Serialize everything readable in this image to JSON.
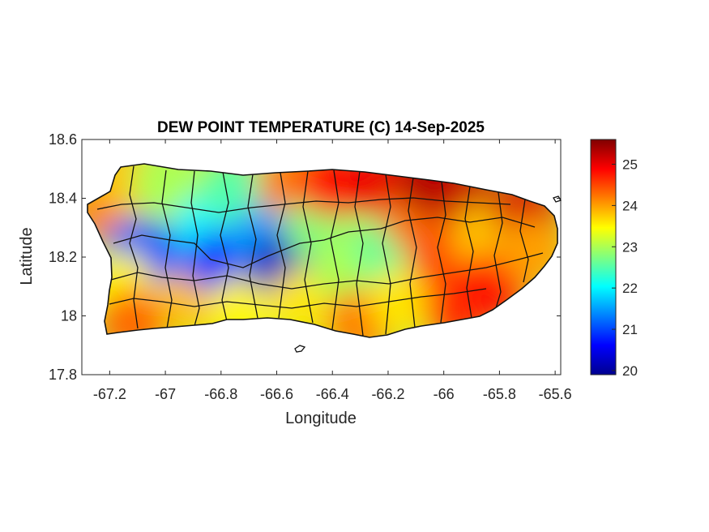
{
  "map": {
    "title": "DEW POINT TEMPERATURE (C) 14-Sep-2025",
    "xlabel": "Longitude",
    "ylabel": "Latitude",
    "xlim": [
      -67.3,
      -65.58
    ],
    "ylim": [
      17.8,
      18.6
    ],
    "xticks": [
      -67.2,
      -67,
      -66.8,
      -66.6,
      -66.4,
      -66.2,
      -66,
      -65.8,
      -65.6
    ],
    "xtick_labels": [
      "-67.2",
      "-67",
      "-66.8",
      "-66.6",
      "-66.4",
      "-66.2",
      "-66",
      "-65.8",
      "-65.6"
    ],
    "yticks": [
      17.8,
      18,
      18.2,
      18.4,
      18.6
    ],
    "ytick_labels": [
      "17.8",
      "18",
      "18.2",
      "18.4",
      "18.6"
    ],
    "colormap": "jet",
    "colorbar": {
      "range": [
        19.9,
        25.6
      ],
      "ticks": [
        20,
        21,
        22,
        23,
        24,
        25
      ],
      "tick_labels": [
        "20",
        "21",
        "22",
        "23",
        "24",
        "25"
      ]
    },
    "region": "Puerto Rico",
    "dew_point_field": [
      {
        "lon": -67.22,
        "lat": 18.37,
        "value": 24.2
      },
      {
        "lon": -67.15,
        "lat": 18.47,
        "value": 23.8
      },
      {
        "lon": -67.1,
        "lat": 18.22,
        "value": 21.2
      },
      {
        "lon": -67.15,
        "lat": 18.1,
        "value": 23.5
      },
      {
        "lon": -67.12,
        "lat": 17.98,
        "value": 24.3
      },
      {
        "lon": -67.0,
        "lat": 18.45,
        "value": 23.0
      },
      {
        "lon": -66.95,
        "lat": 18.2,
        "value": 21.0
      },
      {
        "lon": -66.9,
        "lat": 18.05,
        "value": 23.8
      },
      {
        "lon": -66.85,
        "lat": 18.3,
        "value": 22.0
      },
      {
        "lon": -66.8,
        "lat": 18.18,
        "value": 20.8
      },
      {
        "lon": -66.75,
        "lat": 18.42,
        "value": 22.5
      },
      {
        "lon": -66.72,
        "lat": 18.02,
        "value": 23.5
      },
      {
        "lon": -66.65,
        "lat": 18.26,
        "value": 21.5
      },
      {
        "lon": -66.58,
        "lat": 18.17,
        "value": 20.3
      },
      {
        "lon": -66.55,
        "lat": 18.45,
        "value": 24.2
      },
      {
        "lon": -66.5,
        "lat": 18.05,
        "value": 23.6
      },
      {
        "lon": -66.45,
        "lat": 18.3,
        "value": 22.8
      },
      {
        "lon": -66.4,
        "lat": 18.45,
        "value": 24.8
      },
      {
        "lon": -66.35,
        "lat": 18.15,
        "value": 23.0
      },
      {
        "lon": -66.3,
        "lat": 17.98,
        "value": 24.2
      },
      {
        "lon": -66.22,
        "lat": 18.45,
        "value": 25.0
      },
      {
        "lon": -66.2,
        "lat": 18.22,
        "value": 22.6
      },
      {
        "lon": -66.15,
        "lat": 18.05,
        "value": 23.6
      },
      {
        "lon": -66.1,
        "lat": 18.33,
        "value": 24.2
      },
      {
        "lon": -66.05,
        "lat": 18.45,
        "value": 25.3
      },
      {
        "lon": -66.0,
        "lat": 18.2,
        "value": 24.5
      },
      {
        "lon": -65.95,
        "lat": 18.02,
        "value": 24.6
      },
      {
        "lon": -65.9,
        "lat": 18.4,
        "value": 25.2
      },
      {
        "lon": -65.85,
        "lat": 18.27,
        "value": 23.8
      },
      {
        "lon": -65.82,
        "lat": 18.1,
        "value": 24.8
      },
      {
        "lon": -65.7,
        "lat": 18.35,
        "value": 25.1
      },
      {
        "lon": -65.68,
        "lat": 18.22,
        "value": 24.0
      }
    ]
  }
}
